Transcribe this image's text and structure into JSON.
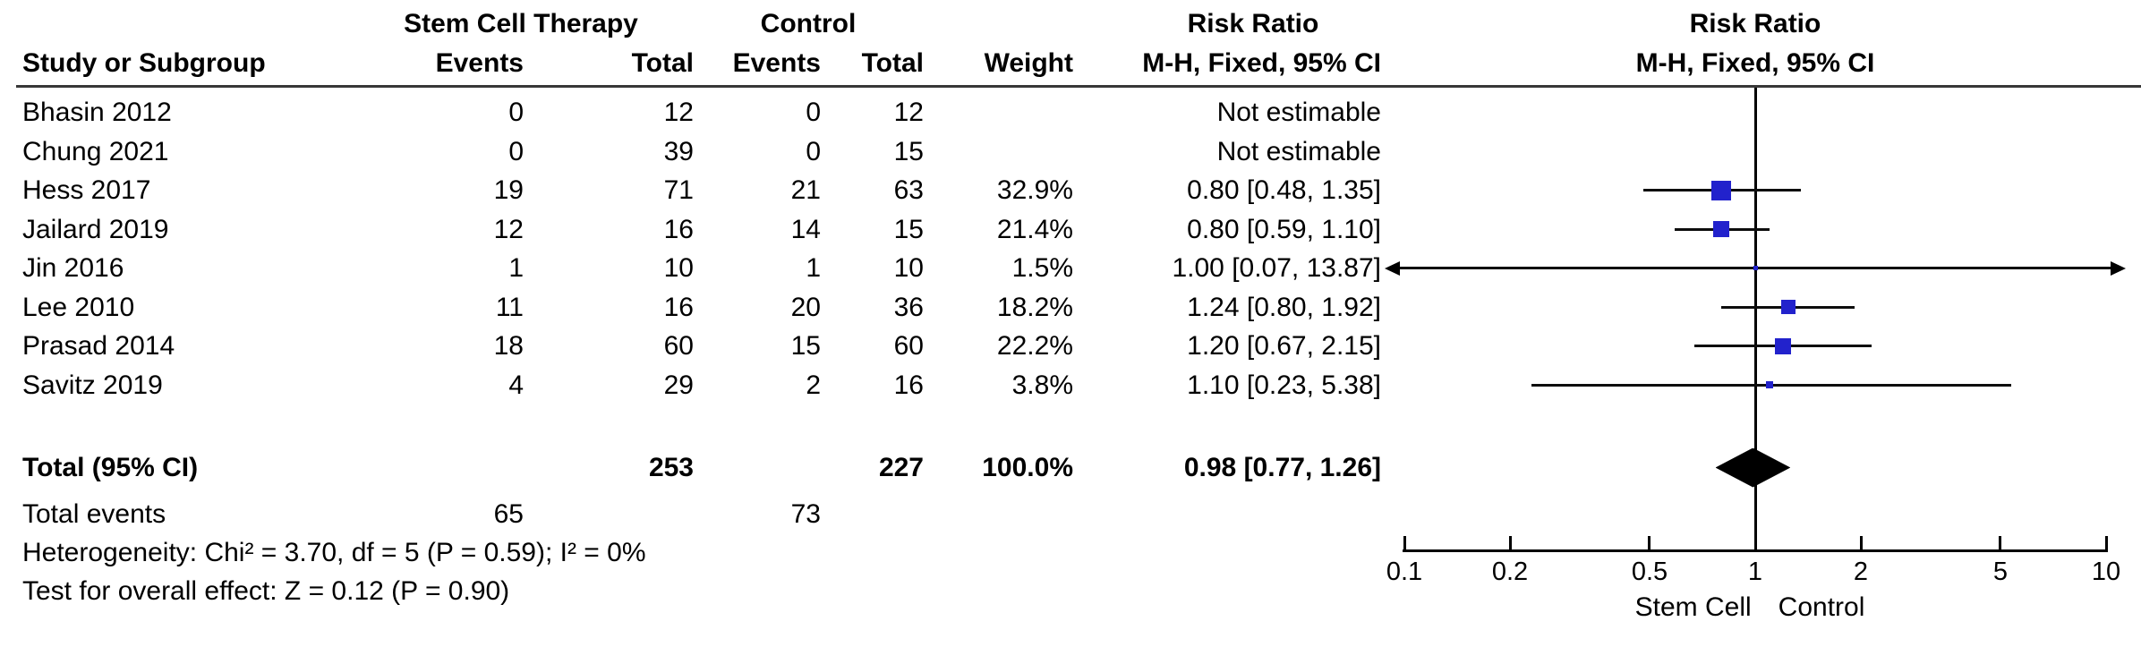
{
  "header": {
    "study_col": "Study or Subgroup",
    "experimental_group": "Stem Cell Therapy",
    "control_group": "Control",
    "events_col": "Events",
    "total_col": "Total",
    "events_col2": "Events",
    "total_col2": "Total",
    "weight_col": "Weight",
    "effect_title": "Risk Ratio",
    "effect_method": "M-H, Fixed, 95% CI",
    "plot_title": "Risk Ratio",
    "plot_method": "M-H, Fixed, 95% CI"
  },
  "chart_data": {
    "type": "forest",
    "x_scale": "log10",
    "x_range": [
      0.1,
      10
    ],
    "x_ticks": [
      "0.1",
      "0.2",
      "0.5",
      "1",
      "2",
      "5",
      "10"
    ],
    "x_tick_values": [
      0.1,
      0.2,
      0.5,
      1,
      2,
      5,
      10
    ],
    "null_line": 1,
    "axis_label_left": "Stem Cell",
    "axis_label_right": "Control",
    "marker_color": "#2222cc",
    "line_color": "#0d0d0d",
    "diamond_color": "#000000",
    "studies": [
      {
        "label": "Bhasin 2012",
        "events_exp": "0",
        "total_exp": "12",
        "events_ctrl": "0",
        "total_ctrl": "12",
        "weight": "",
        "weight_value": null,
        "ci_text": "Not estimable",
        "rr": null,
        "lo": null,
        "hi": null
      },
      {
        "label": "Chung 2021",
        "events_exp": "0",
        "total_exp": "39",
        "events_ctrl": "0",
        "total_ctrl": "15",
        "weight": "",
        "weight_value": null,
        "ci_text": "Not estimable",
        "rr": null,
        "lo": null,
        "hi": null
      },
      {
        "label": "Hess 2017",
        "events_exp": "19",
        "total_exp": "71",
        "events_ctrl": "21",
        "total_ctrl": "63",
        "weight": "32.9%",
        "weight_value": 32.9,
        "ci_text": "0.80 [0.48, 1.35]",
        "rr": 0.8,
        "lo": 0.48,
        "hi": 1.35
      },
      {
        "label": "Jailard 2019",
        "events_exp": "12",
        "total_exp": "16",
        "events_ctrl": "14",
        "total_ctrl": "15",
        "weight": "21.4%",
        "weight_value": 21.4,
        "ci_text": "0.80 [0.59, 1.10]",
        "rr": 0.8,
        "lo": 0.59,
        "hi": 1.1
      },
      {
        "label": "Jin 2016",
        "events_exp": "1",
        "total_exp": "10",
        "events_ctrl": "1",
        "total_ctrl": "10",
        "weight": "1.5%",
        "weight_value": 1.5,
        "ci_text": "1.00 [0.07, 13.87]",
        "rr": 1.0,
        "lo": 0.07,
        "hi": 13.87
      },
      {
        "label": "Lee 2010",
        "events_exp": "11",
        "total_exp": "16",
        "events_ctrl": "20",
        "total_ctrl": "36",
        "weight": "18.2%",
        "weight_value": 18.2,
        "ci_text": "1.24 [0.80, 1.92]",
        "rr": 1.24,
        "lo": 0.8,
        "hi": 1.92
      },
      {
        "label": "Prasad 2014",
        "events_exp": "18",
        "total_exp": "60",
        "events_ctrl": "15",
        "total_ctrl": "60",
        "weight": "22.2%",
        "weight_value": 22.2,
        "ci_text": "1.20 [0.67, 2.15]",
        "rr": 1.2,
        "lo": 0.67,
        "hi": 2.15
      },
      {
        "label": "Savitz 2019",
        "events_exp": "4",
        "total_exp": "29",
        "events_ctrl": "2",
        "total_ctrl": "16",
        "weight": "3.8%",
        "weight_value": 3.8,
        "ci_text": "1.10 [0.23, 5.38]",
        "rr": 1.1,
        "lo": 0.23,
        "hi": 5.38
      }
    ],
    "total": {
      "label": "Total (95% CI)",
      "total_exp": "253",
      "total_ctrl": "227",
      "weight": "100.0%",
      "ci_text": "0.98 [0.77, 1.26]",
      "rr": 0.98,
      "lo": 0.77,
      "hi": 1.26
    }
  },
  "footer": {
    "total_events_label": "Total events",
    "total_events_exp": "65",
    "total_events_ctrl": "73",
    "heterogeneity": "Heterogeneity: Chi² = 3.70, df = 5 (P = 0.59); I² = 0%",
    "overall_effect": "Test for overall effect: Z = 0.12 (P = 0.90)"
  }
}
